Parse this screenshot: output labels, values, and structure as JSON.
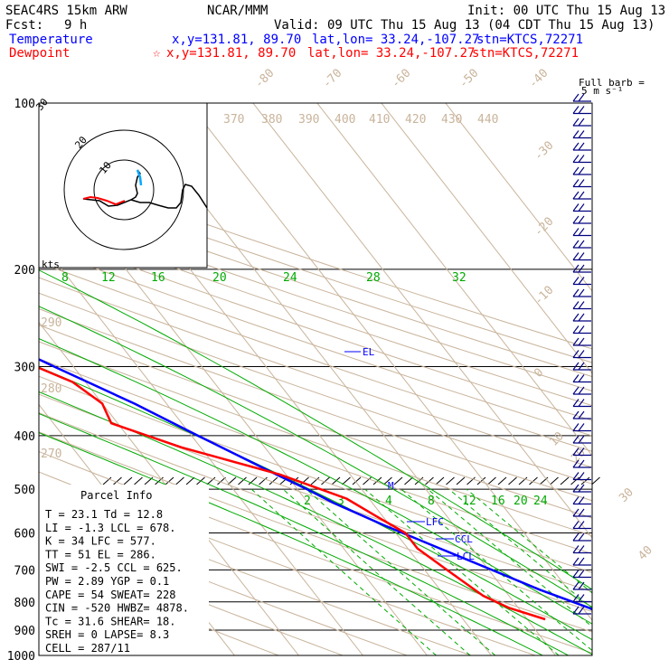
{
  "header": {
    "model": "SEAC4RS 15km ARW",
    "center": "NCAR/MMM",
    "init": "Init: 00 UTC Thu 15 Aug 13",
    "fcst_label": "Fcst:",
    "fcst_value": "9 h",
    "valid": "Valid: 09 UTC Thu 15 Aug 13 (04 CDT Thu 15 Aug 13)",
    "temp_label": "Temperature",
    "temp_xy": "x,y=131.81, 89.70",
    "temp_latlon": "lat,lon= 33.24,-107.27",
    "temp_stn": "stn=KTCS,72271",
    "dew_label": "Dewpoint",
    "dew_star": "☆",
    "dew_xy": "x,y=131.81, 89.70",
    "dew_latlon": "lat,lon= 33.24,-107.27",
    "dew_stn": "stn=KTCS,72271"
  },
  "colors": {
    "temperature": "#0000ff",
    "dewpoint": "#ff0000",
    "isotherm": "#c9b49b",
    "adiabat": "#c9b49b",
    "moist_adiabat": "#00aa00",
    "isobar": "#000000",
    "hodograph": "#000000",
    "parcel": "#000000"
  },
  "wind_barb_label": "Full barb =",
  "wind_barb_units": "5 m s⁻¹",
  "hodograph": {
    "kts_label": "kts",
    "ring_labels": [
      "10",
      "20",
      "30"
    ]
  },
  "parcel_info": {
    "title": "Parcel Info",
    "rows": [
      "T  =   23.1  Td =  12.8",
      "LI =   -1.3  LCL =  678.",
      "K  =     34  LFC =  577.",
      "TT =     51  EL  =  286.",
      "SWI =  -2.5  CCL =  625.",
      "PW =   2.89  YGP =   0.1",
      "CAPE =   54  SWEAT=  228",
      "CIN =  -520  HWBZ= 4878.",
      "Tc =   31.6  SHEAR=  18.",
      "SREH =    0  LAPSE=  8.3",
      "CELL = 287/11"
    ]
  },
  "markers": {
    "el": "EL",
    "lfc": "LFC",
    "ccl": "CCL",
    "lcl": "LCL",
    "m": "M"
  },
  "chart_data": {
    "type": "line",
    "title": "SEAC4RS 15km ARW",
    "xlabel": "",
    "ylabel": "",
    "y_scale": "log-pressure",
    "pressure_ticks": [
      100,
      200,
      300,
      400,
      500,
      600,
      700,
      800,
      900,
      1000
    ],
    "isotherm_labels": [
      -80,
      -70,
      -60,
      -50,
      -40,
      -30,
      -20,
      -10,
      0,
      10,
      20,
      30,
      40
    ],
    "theta_labels": [
      370,
      380,
      390,
      400,
      410,
      420,
      430,
      440,
      290,
      280,
      270
    ],
    "mixing_ratio_labels_upper": [
      8,
      12,
      16,
      20,
      24,
      28,
      32
    ],
    "mixing_ratio_labels_lower": [
      2,
      3,
      4,
      8,
      12,
      16,
      20,
      24
    ],
    "series": [
      {
        "name": "Temperature",
        "points": [
          {
            "p": 860,
            "t": 23.1
          },
          {
            "p": 820,
            "t": 21.0
          },
          {
            "p": 760,
            "t": 15.5
          },
          {
            "p": 700,
            "t": 10.5
          },
          {
            "p": 640,
            "t": 5.0
          },
          {
            "p": 580,
            "t": -1.0
          },
          {
            "p": 530,
            "t": -6.0
          },
          {
            "p": 500,
            "t": -8.5
          },
          {
            "p": 470,
            "t": -11.5
          },
          {
            "p": 400,
            "t": -19.0
          },
          {
            "p": 350,
            "t": -25.0
          },
          {
            "p": 300,
            "t": -33.0
          },
          {
            "p": 250,
            "t": -42.0
          },
          {
            "p": 200,
            "t": -53.0
          },
          {
            "p": 170,
            "t": -61.0
          },
          {
            "p": 150,
            "t": -67.0
          },
          {
            "p": 135,
            "t": -70.5
          },
          {
            "p": 125,
            "t": -72.0
          },
          {
            "p": 110,
            "t": -71.5
          },
          {
            "p": 100,
            "t": -72.0
          }
        ]
      },
      {
        "name": "Dewpoint",
        "points": [
          {
            "p": 860,
            "t": 12.8
          },
          {
            "p": 820,
            "t": 8.5
          },
          {
            "p": 780,
            "t": 6.0
          },
          {
            "p": 700,
            "t": 3.5
          },
          {
            "p": 640,
            "t": 1.5
          },
          {
            "p": 600,
            "t": 1.5
          },
          {
            "p": 560,
            "t": -1.0
          },
          {
            "p": 520,
            "t": -3.5
          },
          {
            "p": 470,
            "t": -11.0
          },
          {
            "p": 420,
            "t": -23.0
          },
          {
            "p": 380,
            "t": -31.0
          },
          {
            "p": 350,
            "t": -30.0
          },
          {
            "p": 320,
            "t": -32.0
          },
          {
            "p": 280,
            "t": -40.0
          },
          {
            "p": 250,
            "t": -47.0
          },
          {
            "p": 200,
            "t": -59.0
          },
          {
            "p": 160,
            "t": -68.0
          },
          {
            "p": 140,
            "t": -74.0
          },
          {
            "p": 120,
            "t": -75.0
          },
          {
            "p": 100,
            "t": -73.0
          }
        ]
      }
    ],
    "grid": true,
    "legend": "top-left"
  }
}
